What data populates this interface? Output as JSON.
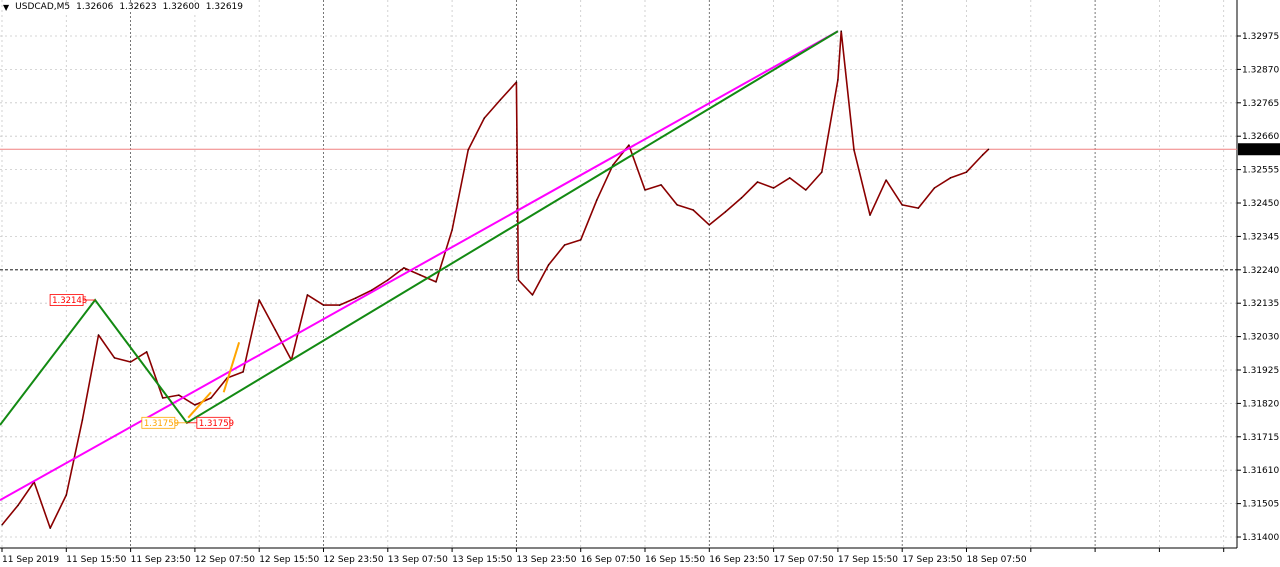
{
  "header": {
    "symbol": "USDCAD,M5",
    "open": "1.32606",
    "high": "1.32623",
    "low": "1.32600",
    "close": "1.32619",
    "menu_icon": "triangle-down-icon"
  },
  "colors": {
    "price": "#8b0000",
    "zigzag": "#138a13",
    "trendline": "#ff00ff",
    "orange": "#ffa500",
    "bid_line": "#f08080",
    "current_price_bg": "#000000"
  },
  "chart_data": {
    "type": "line",
    "title": "USDCAD,M5",
    "ylim": [
      1.3136,
      1.3306
    ],
    "grid": true,
    "y_ticks": [
      "1.32975",
      "1.32870",
      "1.32765",
      "1.32660",
      "1.32555",
      "1.32450",
      "1.32345",
      "1.32240",
      "1.32135",
      "1.32030",
      "1.31925",
      "1.31820",
      "1.31715",
      "1.31610",
      "1.31505",
      "1.31400"
    ],
    "x_ticks": [
      "11 Sep 2019",
      "11 Sep 15:50",
      "11 Sep 23:50",
      "12 Sep 07:50",
      "12 Sep 15:50",
      "12 Sep 23:50",
      "13 Sep 07:50",
      "13 Sep 15:50",
      "13 Sep 23:50",
      "16 Sep 07:50",
      "16 Sep 15:50",
      "16 Sep 23:50",
      "17 Sep 07:50",
      "17 Sep 15:50",
      "17 Sep 23:50",
      "18 Sep 07:50"
    ],
    "current_price": "1.32619",
    "horizontal_line": 1.3224,
    "series": [
      {
        "x": [
          "2019-09-11 07:50",
          "2019-09-11 09:50",
          "2019-09-11 11:50",
          "2019-09-11 13:50",
          "2019-09-11 15:50",
          "2019-09-11 17:50",
          "2019-09-11 19:50",
          "2019-09-11 21:50",
          "2019-09-11 23:50",
          "2019-09-12 01:50",
          "2019-09-12 03:50",
          "2019-09-12 05:50",
          "2019-09-12 07:50",
          "2019-09-12 09:50",
          "2019-09-12 11:50",
          "2019-09-12 13:50",
          "2019-09-12 15:50",
          "2019-09-12 17:50",
          "2019-09-12 19:50",
          "2019-09-12 21:50",
          "2019-09-12 23:50",
          "2019-09-13 01:50",
          "2019-09-13 03:50",
          "2019-09-13 05:50",
          "2019-09-13 07:50",
          "2019-09-13 09:50",
          "2019-09-13 11:50",
          "2019-09-13 13:50",
          "2019-09-13 15:50",
          "2019-09-13 17:50",
          "2019-09-13 19:50",
          "2019-09-13 21:50",
          "2019-09-13 23:50",
          "2019-09-16 00:05",
          "2019-09-16 01:50",
          "2019-09-16 03:50",
          "2019-09-16 05:50",
          "2019-09-16 07:50",
          "2019-09-16 09:50",
          "2019-09-16 11:50",
          "2019-09-16 13:50",
          "2019-09-16 15:50",
          "2019-09-16 17:50",
          "2019-09-16 19:50",
          "2019-09-16 21:50",
          "2019-09-16 23:50",
          "2019-09-17 01:50",
          "2019-09-17 03:50",
          "2019-09-17 05:50",
          "2019-09-17 07:50",
          "2019-09-17 09:50",
          "2019-09-17 11:50",
          "2019-09-17 13:50",
          "2019-09-17 15:50",
          "2019-09-17 16:15",
          "2019-09-17 17:50",
          "2019-09-17 19:50",
          "2019-09-17 21:50",
          "2019-09-17 23:50",
          "2019-09-18 01:50",
          "2019-09-18 03:50",
          "2019-09-18 05:50",
          "2019-09-18 07:50",
          "2019-09-18 09:50",
          "2019-09-18 10:35"
        ],
        "y": [
          1.31438,
          1.315,
          1.31573,
          1.31428,
          1.31532,
          1.31768,
          1.32035,
          1.31963,
          1.3195,
          1.31982,
          1.31837,
          1.31846,
          1.31815,
          1.31837,
          1.319,
          1.31919,
          1.32145,
          1.32051,
          1.31956,
          1.32161,
          1.32129,
          1.32129,
          1.32151,
          1.32176,
          1.32208,
          1.32246,
          1.32224,
          1.32202,
          1.32365,
          1.32617,
          1.32717,
          1.32774,
          1.3283,
          1.32208,
          1.32161,
          1.32255,
          1.32318,
          1.32334,
          1.32459,
          1.32569,
          1.32632,
          1.32491,
          1.32507,
          1.32444,
          1.32428,
          1.32381,
          1.32422,
          1.32466,
          1.32516,
          1.32497,
          1.32529,
          1.32491,
          1.32547,
          1.32837,
          1.3299,
          1.32617,
          1.32412,
          1.32522,
          1.32444,
          1.32434,
          1.32497,
          1.32529,
          1.32547,
          1.32601,
          1.32619
        ]
      }
    ],
    "zigzag": {
      "x": [
        "2019-09-11 07:35",
        "2019-09-11 19:25",
        "2019-09-12 06:50",
        "2019-09-17 15:50"
      ],
      "y": [
        1.31752,
        1.32145,
        1.31759,
        1.3299
      ]
    },
    "trendline": {
      "x": [
        "2019-09-11 07:35",
        "2019-09-17 15:50"
      ],
      "y": [
        1.31516,
        1.3299
      ]
    },
    "orange_segments": [
      {
        "x": [
          "2019-09-12 07:00",
          "2019-09-12 09:50"
        ],
        "y": [
          1.31775,
          1.31855
        ]
      },
      {
        "x": [
          "2019-09-12 11:25",
          "2019-09-12 13:20"
        ],
        "y": [
          1.31855,
          1.32012
        ]
      }
    ],
    "price_labels": [
      {
        "text": "1.32145",
        "x": "2019-09-11 19:25",
        "y": 1.32145,
        "side": "left",
        "color": "#ff0000"
      },
      {
        "text": "1.31759",
        "x": "2019-09-12 06:50",
        "y": 1.31759,
        "side": "left",
        "color": "#ffa500"
      },
      {
        "text": "1.31759",
        "x": "2019-09-12 06:50",
        "y": 1.31759,
        "side": "right",
        "color": "#ff0000"
      }
    ]
  }
}
